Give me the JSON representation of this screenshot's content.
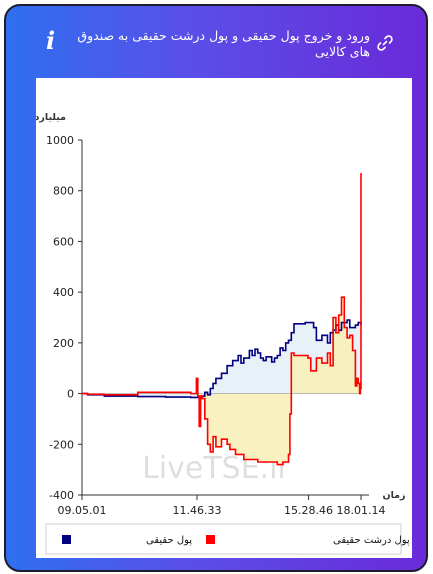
{
  "header": {
    "title": "ورود و خروج پول حقیقی و پول درشت حقیقی به صندوق های کالایی",
    "info_icon": "info-icon",
    "link_icon": "link-icon"
  },
  "colors": {
    "header_gradient_start": "#2f6ff0",
    "header_gradient_end": "#6a2ad8",
    "series_real_money": "#000080",
    "series_big_real_money": "#ff0000",
    "fill_positive": "#e4eef7",
    "fill_negative": "#f8efb4"
  },
  "chart_data": {
    "type": "line",
    "ylabel": "میلیارد تومان",
    "xlabel": "زمان",
    "ylim": [
      -400,
      1000
    ],
    "yticks": [
      -400,
      -200,
      0,
      200,
      400,
      600,
      800,
      1000
    ],
    "xticks": [
      "09.05.01",
      "11.46.33",
      "15.28.46",
      "18.01.14"
    ],
    "xtick_positions": [
      0,
      0.412,
      0.812,
      1.0
    ],
    "grid": false,
    "legend_position": "bottom",
    "watermark": "LiveTSE.ir",
    "series": [
      {
        "name": "پول حقیقی",
        "color": "#000080",
        "points": [
          [
            0,
            0
          ],
          [
            0.02,
            -5
          ],
          [
            0.08,
            -10
          ],
          [
            0.2,
            -12
          ],
          [
            0.3,
            -14
          ],
          [
            0.39,
            -15
          ],
          [
            0.41,
            -15
          ],
          [
            0.43,
            -10
          ],
          [
            0.44,
            5
          ],
          [
            0.45,
            -5
          ],
          [
            0.46,
            20
          ],
          [
            0.47,
            40
          ],
          [
            0.48,
            60
          ],
          [
            0.5,
            80
          ],
          [
            0.52,
            110
          ],
          [
            0.54,
            130
          ],
          [
            0.56,
            150
          ],
          [
            0.57,
            120
          ],
          [
            0.58,
            140
          ],
          [
            0.6,
            170
          ],
          [
            0.61,
            150
          ],
          [
            0.62,
            175
          ],
          [
            0.63,
            160
          ],
          [
            0.64,
            140
          ],
          [
            0.65,
            130
          ],
          [
            0.66,
            145
          ],
          [
            0.68,
            125
          ],
          [
            0.69,
            140
          ],
          [
            0.7,
            150
          ],
          [
            0.71,
            180
          ],
          [
            0.72,
            170
          ],
          [
            0.73,
            200
          ],
          [
            0.74,
            210
          ],
          [
            0.75,
            240
          ],
          [
            0.76,
            275
          ],
          [
            0.8,
            280
          ],
          [
            0.83,
            260
          ],
          [
            0.84,
            210
          ],
          [
            0.86,
            230
          ],
          [
            0.88,
            200
          ],
          [
            0.89,
            240
          ],
          [
            0.9,
            250
          ],
          [
            0.91,
            270
          ],
          [
            0.92,
            250
          ],
          [
            0.93,
            280
          ],
          [
            0.95,
            290
          ],
          [
            0.96,
            260
          ],
          [
            0.98,
            270
          ],
          [
            0.99,
            280
          ],
          [
            1.0,
            270
          ]
        ]
      },
      {
        "name": "پول درشت حقیقی",
        "color": "#ff0000",
        "points": [
          [
            0,
            0
          ],
          [
            0.02,
            -3
          ],
          [
            0.08,
            -5
          ],
          [
            0.2,
            5
          ],
          [
            0.3,
            5
          ],
          [
            0.39,
            0
          ],
          [
            0.405,
            0
          ],
          [
            0.41,
            60
          ],
          [
            0.415,
            -10
          ],
          [
            0.42,
            -130
          ],
          [
            0.425,
            -10
          ],
          [
            0.43,
            -20
          ],
          [
            0.44,
            -100
          ],
          [
            0.45,
            -200
          ],
          [
            0.46,
            -230
          ],
          [
            0.47,
            -170
          ],
          [
            0.48,
            -210
          ],
          [
            0.5,
            -180
          ],
          [
            0.52,
            -200
          ],
          [
            0.53,
            -220
          ],
          [
            0.55,
            -240
          ],
          [
            0.58,
            -260
          ],
          [
            0.63,
            -270
          ],
          [
            0.7,
            -280
          ],
          [
            0.72,
            -270
          ],
          [
            0.74,
            -240
          ],
          [
            0.745,
            -80
          ],
          [
            0.75,
            160
          ],
          [
            0.76,
            150
          ],
          [
            0.81,
            140
          ],
          [
            0.82,
            90
          ],
          [
            0.84,
            140
          ],
          [
            0.86,
            120
          ],
          [
            0.88,
            160
          ],
          [
            0.89,
            110
          ],
          [
            0.9,
            300
          ],
          [
            0.91,
            240
          ],
          [
            0.92,
            310
          ],
          [
            0.93,
            380
          ],
          [
            0.94,
            260
          ],
          [
            0.95,
            220
          ],
          [
            0.96,
            230
          ],
          [
            0.97,
            170
          ],
          [
            0.98,
            30
          ],
          [
            0.985,
            60
          ],
          [
            0.99,
            40
          ],
          [
            0.995,
            0
          ],
          [
            0.998,
            20
          ],
          [
            1.0,
            870
          ]
        ]
      }
    ]
  },
  "legend": {
    "real_money": "پول حقیقی",
    "big_real_money": "پول درشت حقیقی"
  }
}
